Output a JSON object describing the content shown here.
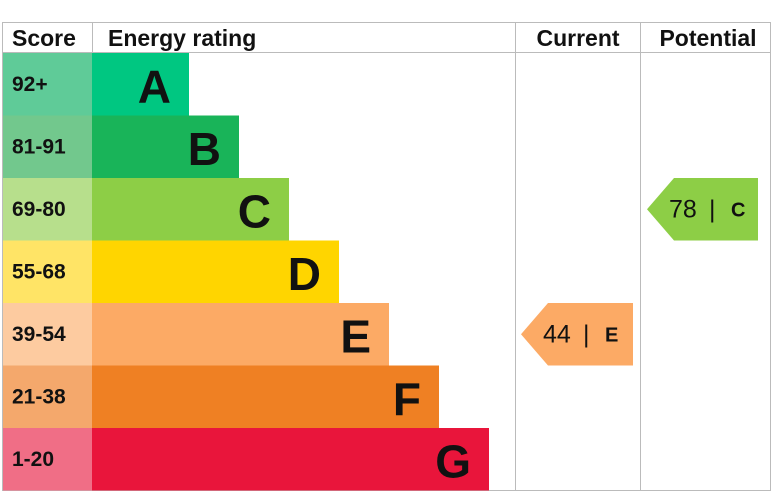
{
  "header": {
    "score": "Score",
    "energy_rating": "Energy rating",
    "current": "Current",
    "potential": "Potential"
  },
  "bands": [
    {
      "score": "92+",
      "letter": "A",
      "color": "#00c781",
      "score_color": "#5fcb98"
    },
    {
      "score": "81-91",
      "letter": "B",
      "color": "#19b459",
      "score_color": "#72c88d"
    },
    {
      "score": "69-80",
      "letter": "C",
      "color": "#8dce46",
      "score_color": "#b7df8c"
    },
    {
      "score": "55-68",
      "letter": "D",
      "color": "#ffd500",
      "score_color": "#ffe466"
    },
    {
      "score": "39-54",
      "letter": "E",
      "color": "#fcaa65",
      "score_color": "#fdcba0"
    },
    {
      "score": "21-38",
      "letter": "F",
      "color": "#ef8023",
      "score_color": "#f4a86c"
    },
    {
      "score": "1-20",
      "letter": "G",
      "color": "#e9153b",
      "score_color": "#f06e86"
    }
  ],
  "current": {
    "value": 44,
    "separator": "|",
    "letter": "E"
  },
  "potential": {
    "value": 78,
    "separator": "|",
    "letter": "C"
  }
}
